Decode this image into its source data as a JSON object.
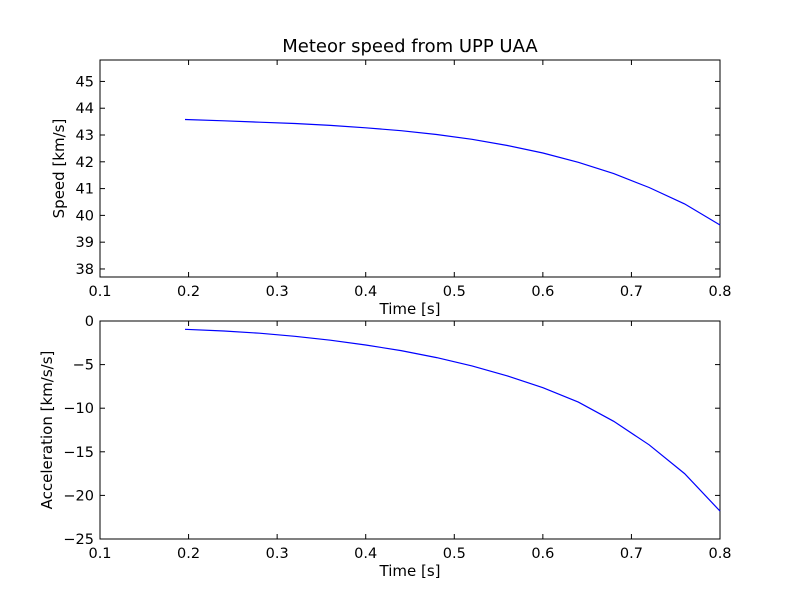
{
  "chart_data": [
    {
      "type": "line",
      "title": "Meteor speed from  UPP UAA",
      "xlabel": "Time [s]",
      "ylabel": "Speed [km/s]",
      "xlim": [
        0.1,
        0.8
      ],
      "ylim": [
        37.7,
        45.8
      ],
      "xticks": [
        "0.1",
        "0.2",
        "0.3",
        "0.4",
        "0.5",
        "0.6",
        "0.7",
        "0.8"
      ],
      "yticks": [
        "38",
        "39",
        "40",
        "41",
        "42",
        "43",
        "44",
        "45"
      ],
      "grid": false,
      "color": "#0000ff",
      "x": [
        0.196,
        0.24,
        0.28,
        0.32,
        0.36,
        0.4,
        0.44,
        0.48,
        0.52,
        0.56,
        0.6,
        0.64,
        0.68,
        0.72,
        0.76,
        0.8
      ],
      "y": [
        43.58,
        43.53,
        43.48,
        43.43,
        43.36,
        43.27,
        43.16,
        43.02,
        42.84,
        42.61,
        42.33,
        41.98,
        41.56,
        41.04,
        40.43,
        39.64
      ]
    },
    {
      "type": "line",
      "title": "",
      "xlabel": "Time [s]",
      "ylabel": "Acceleration [km/s/s]",
      "xlim": [
        0.1,
        0.8
      ],
      "ylim": [
        -25,
        0
      ],
      "xticks": [
        "0.1",
        "0.2",
        "0.3",
        "0.4",
        "0.5",
        "0.6",
        "0.7",
        "0.8"
      ],
      "yticks": [
        "0",
        "−5",
        "−10",
        "−15",
        "−20",
        "−25"
      ],
      "grid": false,
      "color": "#0000ff",
      "x": [
        0.196,
        0.24,
        0.28,
        0.32,
        0.36,
        0.4,
        0.44,
        0.48,
        0.52,
        0.56,
        0.6,
        0.64,
        0.68,
        0.72,
        0.76,
        0.8
      ],
      "y": [
        -0.95,
        -1.15,
        -1.4,
        -1.75,
        -2.2,
        -2.75,
        -3.4,
        -4.2,
        -5.15,
        -6.3,
        -7.65,
        -9.3,
        -11.5,
        -14.2,
        -17.5,
        -21.8
      ]
    }
  ]
}
